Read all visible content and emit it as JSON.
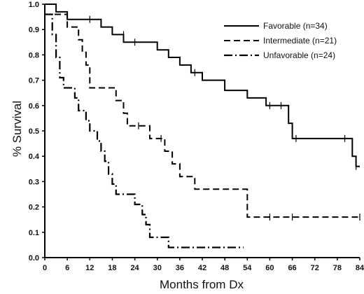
{
  "chart_data": {
    "type": "line",
    "title": "",
    "xlabel": "Months from Dx",
    "ylabel": "% Survival",
    "xlim": [
      0,
      84
    ],
    "ylim": [
      0,
      1.0
    ],
    "x_ticks": [
      "0",
      "6",
      "12",
      "18",
      "24",
      "30",
      "36",
      "42",
      "48",
      "54",
      "60",
      "66",
      "72",
      "78",
      "84"
    ],
    "y_ticks": [
      "0.0",
      "0.1",
      "0.2",
      "0.3",
      "0.4",
      "0.5",
      "0.6",
      "0.7",
      "0.8",
      "0.9",
      "1.0"
    ],
    "grid": false,
    "legend_position": "top-right",
    "step": true,
    "series": [
      {
        "name": "Favorable (n=34)",
        "style": "solid",
        "points": [
          [
            0,
            1.0
          ],
          [
            3,
            1.0
          ],
          [
            3,
            0.97
          ],
          [
            6,
            0.97
          ],
          [
            6,
            0.94
          ],
          [
            15,
            0.94
          ],
          [
            15,
            0.91
          ],
          [
            18,
            0.91
          ],
          [
            18,
            0.88
          ],
          [
            21,
            0.88
          ],
          [
            21,
            0.85
          ],
          [
            30,
            0.85
          ],
          [
            30,
            0.82
          ],
          [
            33,
            0.82
          ],
          [
            33,
            0.79
          ],
          [
            36,
            0.79
          ],
          [
            36,
            0.76
          ],
          [
            39,
            0.76
          ],
          [
            39,
            0.73
          ],
          [
            42,
            0.73
          ],
          [
            42,
            0.7
          ],
          [
            48,
            0.7
          ],
          [
            48,
            0.66
          ],
          [
            54,
            0.66
          ],
          [
            54,
            0.63
          ],
          [
            59,
            0.63
          ],
          [
            59,
            0.6
          ],
          [
            65,
            0.6
          ],
          [
            65,
            0.53
          ],
          [
            66,
            0.53
          ],
          [
            66,
            0.47
          ],
          [
            82,
            0.47
          ],
          [
            82,
            0.4
          ],
          [
            83,
            0.4
          ],
          [
            83,
            0.36
          ],
          [
            84,
            0.36
          ]
        ],
        "censored": [
          [
            12,
            0.94
          ],
          [
            21,
            0.88
          ],
          [
            24,
            0.85
          ],
          [
            40,
            0.73
          ],
          [
            60,
            0.6
          ],
          [
            63,
            0.6
          ],
          [
            67,
            0.47
          ],
          [
            80,
            0.47
          ],
          [
            83,
            0.36
          ]
        ]
      },
      {
        "name": "Intermediate (n=21)",
        "style": "dashed",
        "points": [
          [
            0,
            0.96
          ],
          [
            6,
            0.96
          ],
          [
            6,
            0.91
          ],
          [
            9,
            0.91
          ],
          [
            9,
            0.86
          ],
          [
            10,
            0.86
          ],
          [
            10,
            0.81
          ],
          [
            11,
            0.81
          ],
          [
            11,
            0.76
          ],
          [
            12,
            0.76
          ],
          [
            12,
            0.67
          ],
          [
            19,
            0.67
          ],
          [
            19,
            0.62
          ],
          [
            21,
            0.62
          ],
          [
            21,
            0.57
          ],
          [
            22,
            0.57
          ],
          [
            22,
            0.52
          ],
          [
            28,
            0.52
          ],
          [
            28,
            0.47
          ],
          [
            32,
            0.47
          ],
          [
            32,
            0.42
          ],
          [
            34,
            0.42
          ],
          [
            34,
            0.37
          ],
          [
            36,
            0.37
          ],
          [
            36,
            0.32
          ],
          [
            40,
            0.32
          ],
          [
            40,
            0.27
          ],
          [
            54,
            0.27
          ],
          [
            54,
            0.16
          ],
          [
            84,
            0.16
          ]
        ],
        "censored": [
          [
            25,
            0.52
          ],
          [
            31,
            0.47
          ],
          [
            60,
            0.16
          ],
          [
            66,
            0.16
          ],
          [
            84,
            0.16
          ]
        ]
      },
      {
        "name": "Unfavorable (n=24)",
        "style": "dashdot",
        "points": [
          [
            0,
            0.96
          ],
          [
            2,
            0.96
          ],
          [
            2,
            0.88
          ],
          [
            3,
            0.88
          ],
          [
            3,
            0.79
          ],
          [
            4,
            0.79
          ],
          [
            4,
            0.71
          ],
          [
            5,
            0.71
          ],
          [
            5,
            0.67
          ],
          [
            8,
            0.67
          ],
          [
            8,
            0.63
          ],
          [
            9,
            0.63
          ],
          [
            9,
            0.58
          ],
          [
            11,
            0.58
          ],
          [
            11,
            0.54
          ],
          [
            12,
            0.54
          ],
          [
            12,
            0.5
          ],
          [
            14,
            0.5
          ],
          [
            14,
            0.46
          ],
          [
            15,
            0.46
          ],
          [
            15,
            0.42
          ],
          [
            16,
            0.42
          ],
          [
            16,
            0.38
          ],
          [
            17,
            0.38
          ],
          [
            17,
            0.33
          ],
          [
            18,
            0.33
          ],
          [
            18,
            0.29
          ],
          [
            19,
            0.29
          ],
          [
            19,
            0.25
          ],
          [
            24,
            0.25
          ],
          [
            24,
            0.21
          ],
          [
            26,
            0.21
          ],
          [
            26,
            0.17
          ],
          [
            27,
            0.17
          ],
          [
            27,
            0.13
          ],
          [
            28,
            0.13
          ],
          [
            28,
            0.08
          ],
          [
            33,
            0.08
          ],
          [
            33,
            0.04
          ],
          [
            53,
            0.04
          ]
        ],
        "censored": []
      }
    ]
  }
}
